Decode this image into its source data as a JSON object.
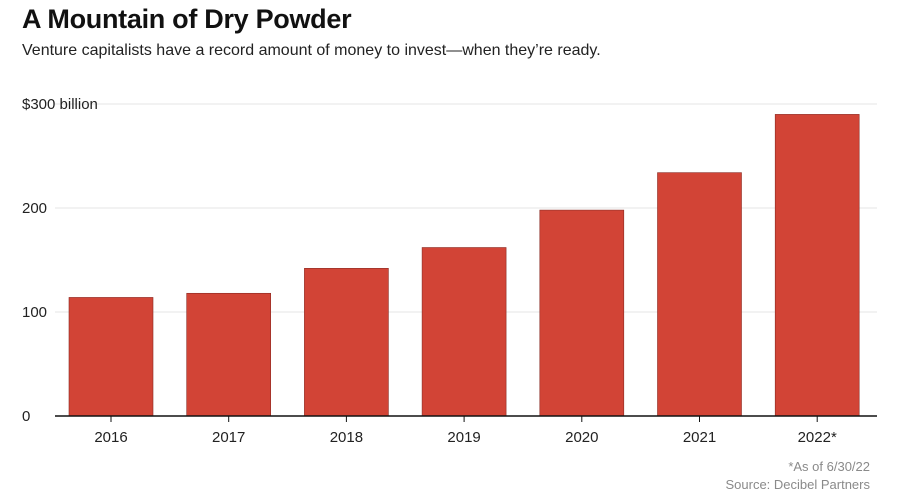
{
  "header": {
    "title": "A Mountain of Dry Powder",
    "subtitle": "Venture capitalists have a record amount of money to invest—when they’re ready."
  },
  "footer": {
    "note": "*As of 6/30/22",
    "source": "Source: Decibel Partners"
  },
  "colors": {
    "bar": "#d24436",
    "grid": "#e6e6e6",
    "axis": "#111111"
  },
  "chart_data": {
    "type": "bar",
    "categories": [
      "2016",
      "2017",
      "2018",
      "2019",
      "2020",
      "2021",
      "2022*"
    ],
    "values": [
      114,
      118,
      142,
      162,
      198,
      234,
      290
    ],
    "ylim": [
      0,
      300
    ],
    "yticks": [
      0,
      100,
      200,
      300
    ],
    "ytick_labels": [
      "0",
      "100",
      "200",
      "$300 billion"
    ],
    "grid": true,
    "legend": "none"
  }
}
